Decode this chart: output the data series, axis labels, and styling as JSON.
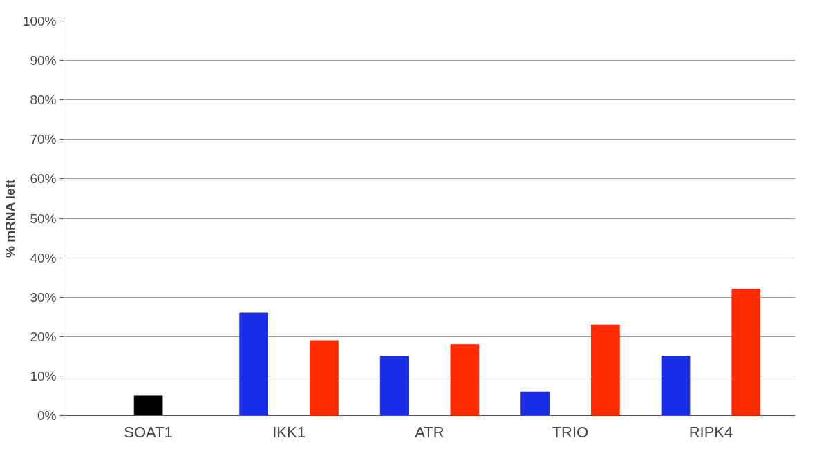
{
  "chart_data": {
    "type": "bar",
    "ylabel": "% mRNA left",
    "categories": [
      "SOAT1",
      "IKK1",
      "ATR",
      "TRIO",
      "RIPK4"
    ],
    "series": [
      {
        "color": "#000000",
        "values": [
          5,
          null,
          null,
          null,
          null
        ]
      },
      {
        "color": "#1a2de6",
        "values": [
          null,
          26,
          15,
          6,
          15
        ]
      },
      {
        "color": "#ff2a00",
        "values": [
          null,
          19,
          18,
          23,
          32
        ]
      }
    ],
    "ylim": [
      0,
      100
    ],
    "yticks": [
      {
        "value": 0,
        "label": "0%"
      },
      {
        "value": 10,
        "label": "10%"
      },
      {
        "value": 20,
        "label": "20%"
      },
      {
        "value": 30,
        "label": "30%"
      },
      {
        "value": 40,
        "label": "40%"
      },
      {
        "value": 50,
        "label": "50%"
      },
      {
        "value": 60,
        "label": "60%"
      },
      {
        "value": 70,
        "label": "70%"
      },
      {
        "value": 80,
        "label": "80%"
      },
      {
        "value": 90,
        "label": "90%"
      },
      {
        "value": 100,
        "label": "100%"
      }
    ],
    "grid": "y"
  }
}
